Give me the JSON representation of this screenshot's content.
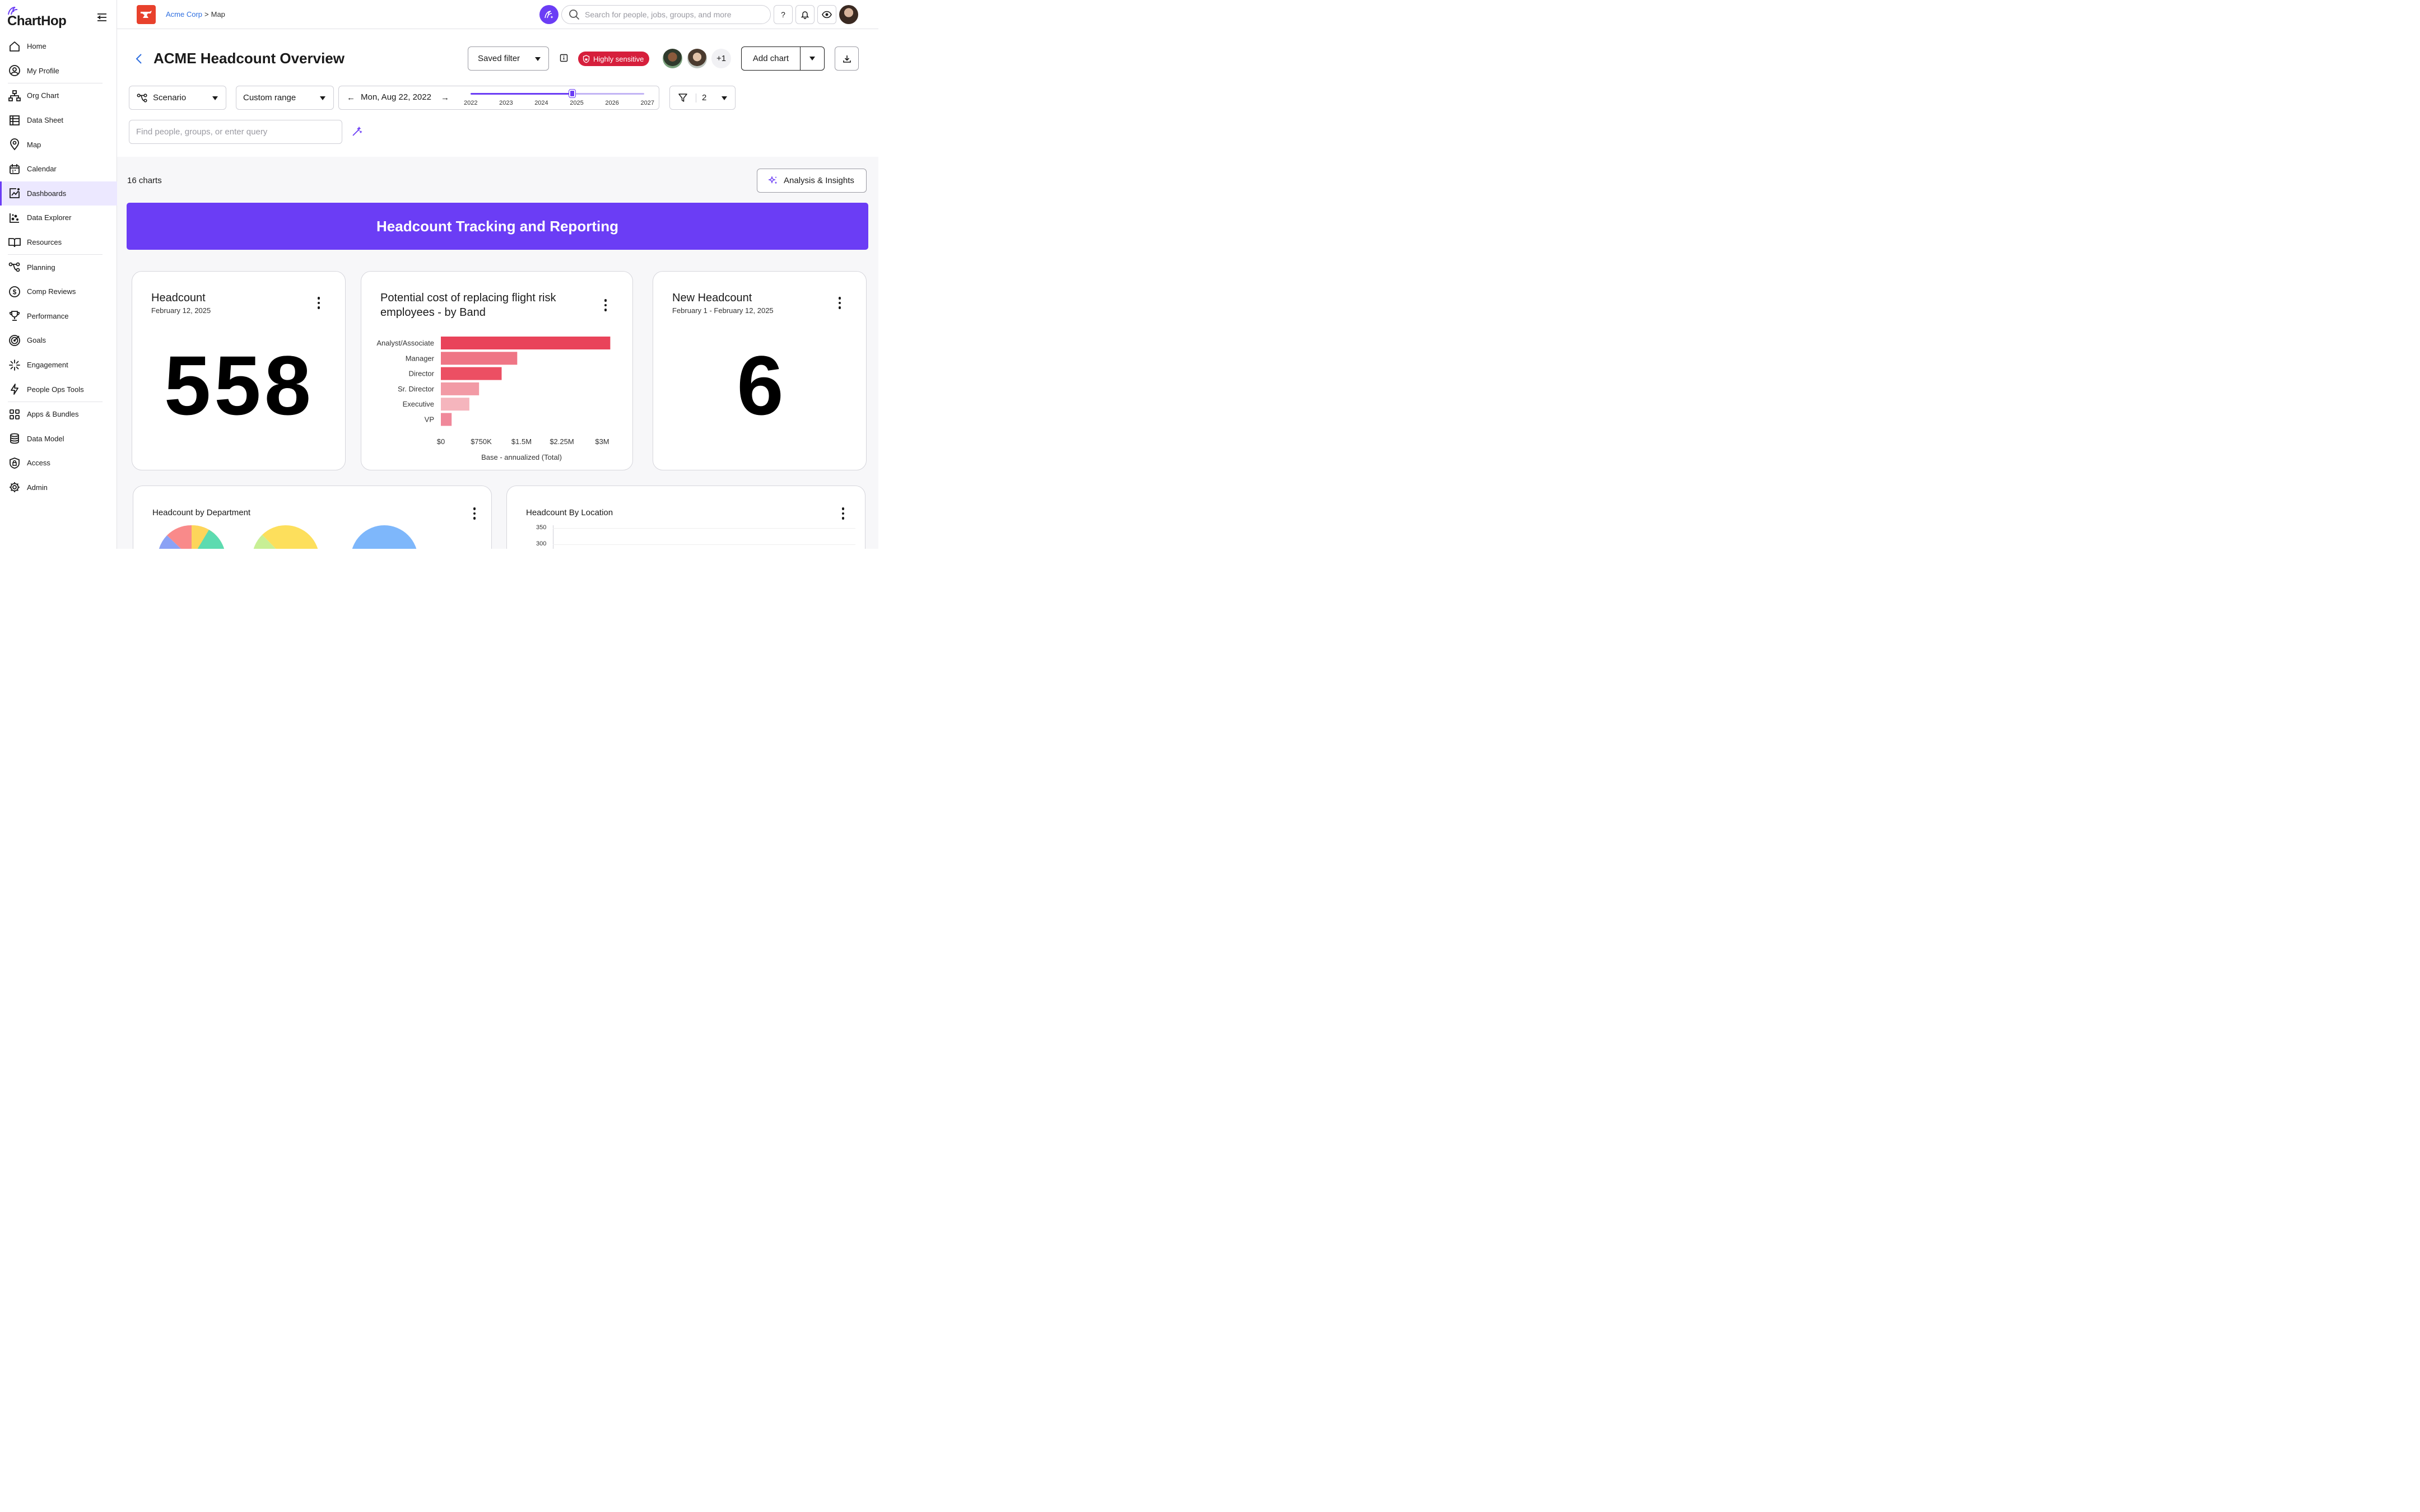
{
  "app": {
    "name": "ChartHop"
  },
  "sidebar": {
    "items": [
      {
        "label": "Home",
        "icon": "home-icon"
      },
      {
        "label": "My Profile",
        "icon": "profile-icon"
      },
      {
        "label": "Org Chart",
        "icon": "org-chart-icon"
      },
      {
        "label": "Data Sheet",
        "icon": "data-sheet-icon"
      },
      {
        "label": "Map",
        "icon": "map-pin-icon"
      },
      {
        "label": "Calendar",
        "icon": "calendar-icon"
      },
      {
        "label": "Dashboards",
        "icon": "dashboard-icon",
        "active": true
      },
      {
        "label": "Data Explorer",
        "icon": "data-explorer-icon"
      },
      {
        "label": "Resources",
        "icon": "book-icon"
      },
      {
        "label": "Planning",
        "icon": "planning-icon"
      },
      {
        "label": "Comp Reviews",
        "icon": "dollar-icon"
      },
      {
        "label": "Performance",
        "icon": "trophy-icon"
      },
      {
        "label": "Goals",
        "icon": "target-icon"
      },
      {
        "label": "Engagement",
        "icon": "sparkle-burst-icon"
      },
      {
        "label": "People Ops Tools",
        "icon": "lightning-icon"
      },
      {
        "label": "Apps & Bundles",
        "icon": "apps-grid-icon"
      },
      {
        "label": "Data Model",
        "icon": "database-icon"
      },
      {
        "label": "Access",
        "icon": "lock-shield-icon"
      },
      {
        "label": "Admin",
        "icon": "gear-icon"
      }
    ]
  },
  "topbar": {
    "breadcrumb": {
      "company": "Acme Corp",
      "separator": ">",
      "current": "Map"
    },
    "search_placeholder": "Search for people, jobs, groups, and more",
    "help_label": "?"
  },
  "header": {
    "title": "ACME Headcount Overview",
    "saved_filter_label": "Saved filter",
    "sensitivity_badge": "Highly sensitive",
    "extra_viewers": "+1",
    "add_chart_label": "Add chart",
    "scenario_label": "Scenario",
    "range_label": "Custom range",
    "date_label": "Mon, Aug 22, 2022",
    "timeline_years": [
      "2022",
      "2023",
      "2024",
      "2025",
      "2026",
      "2027"
    ],
    "filter_count": "2",
    "query_placeholder": "Find people, groups, or enter query"
  },
  "dashboard": {
    "chart_count": "16 charts",
    "insights_label": "Analysis & Insights",
    "banner": "Headcount Tracking and Reporting",
    "cards": {
      "headcount": {
        "title": "Headcount",
        "date": "February 12, 2025",
        "value": "558"
      },
      "flight_risk": {
        "title_line1": "Potential cost of replacing flight risk",
        "title_line2": "employees - by Band"
      },
      "new_headcount": {
        "title": "New Headcount",
        "date": "February 1 - February 12, 2025",
        "value": "6"
      },
      "by_department": {
        "title": "Headcount by Department"
      },
      "by_location": {
        "title": "Headcount By Location",
        "y_ticks": [
          "350",
          "300"
        ]
      }
    }
  },
  "colors": {
    "accent": "#6b3df5",
    "danger": "#d61f3c",
    "link": "#2f6fe0"
  },
  "chart_data": {
    "type": "bar",
    "orientation": "horizontal",
    "title": "Potential cost of replacing flight risk employees - by Band",
    "categories": [
      "Analyst/Associate",
      "Manager",
      "Director",
      "Sr. Director",
      "Executive",
      "VP"
    ],
    "values": [
      3150000,
      1420000,
      1130000,
      710000,
      530000,
      200000
    ],
    "colors": [
      "#e9435a",
      "#ef7585",
      "#ec4f63",
      "#f29aa5",
      "#f5b5bd",
      "#f0889a"
    ],
    "xlabel": "Base - annualized (Total)",
    "x_ticks": [
      "$0",
      "$750K",
      "$1.5M",
      "$2.25M",
      "$3M"
    ],
    "xlim": [
      0,
      3000000
    ],
    "grid": false
  }
}
